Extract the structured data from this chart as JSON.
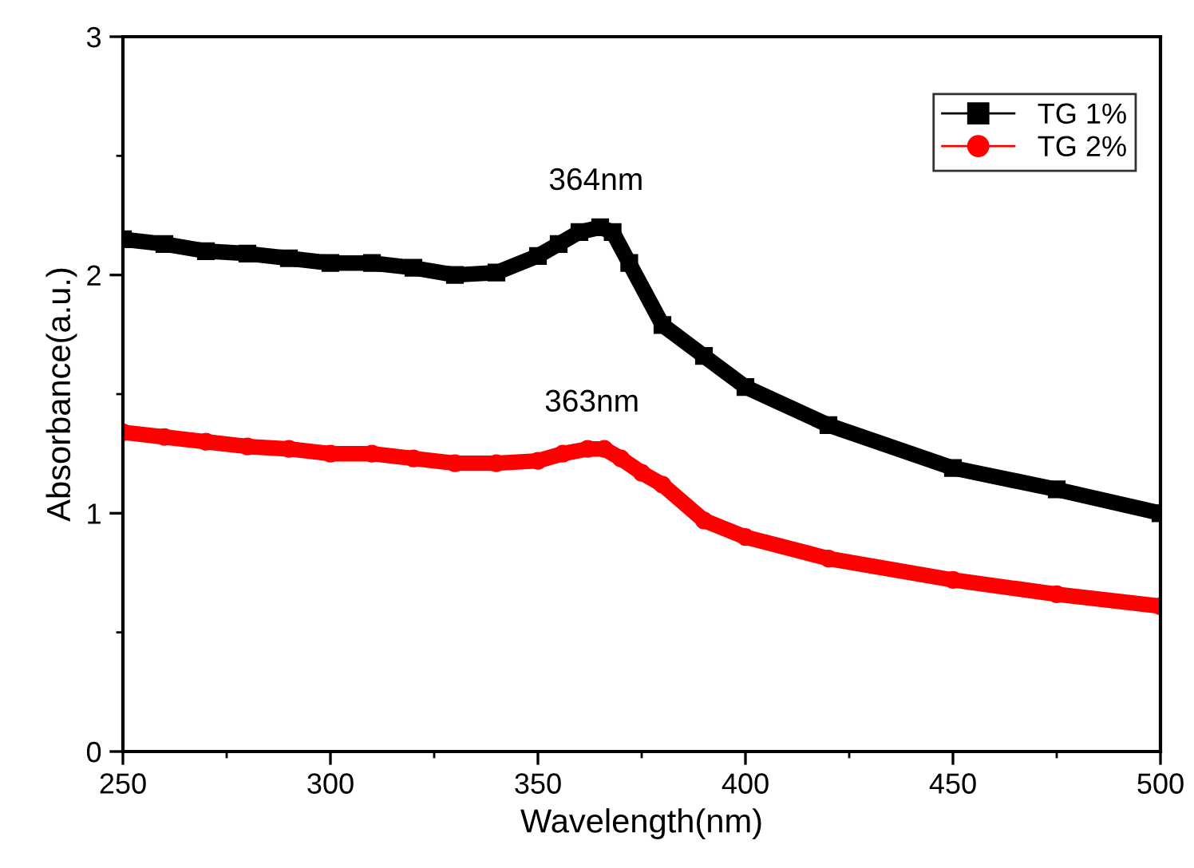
{
  "chart_data": {
    "type": "line",
    "xlabel": "Wavelength(nm)",
    "ylabel": "Absorbance(a.u.)",
    "xlim": [
      250,
      500
    ],
    "xticks": [
      250,
      300,
      350,
      400,
      450,
      500
    ],
    "ylim": [
      0,
      3
    ],
    "yticks": [
      0,
      1,
      2,
      3
    ],
    "grid": false,
    "legend": "top right",
    "line_style": "solid",
    "series": [
      {
        "name": "TG 1%",
        "color": "#000000",
        "marker": "square",
        "x": [
          250,
          260,
          270,
          280,
          290,
          300,
          310,
          320,
          330,
          340,
          350,
          355,
          360,
          365,
          368,
          372,
          380,
          390,
          400,
          420,
          450,
          475,
          500
        ],
        "values": [
          2.15,
          2.13,
          2.1,
          2.09,
          2.07,
          2.05,
          2.05,
          2.03,
          2.0,
          2.01,
          2.08,
          2.13,
          2.18,
          2.2,
          2.18,
          2.05,
          1.79,
          1.66,
          1.53,
          1.37,
          1.19,
          1.1,
          1.0
        ]
      },
      {
        "name": "TG 2%",
        "color": "#ff0000",
        "marker": "circle",
        "x": [
          250,
          260,
          270,
          280,
          290,
          300,
          310,
          320,
          330,
          340,
          350,
          356,
          362,
          366,
          370,
          375,
          380,
          390,
          400,
          420,
          450,
          475,
          500
        ],
        "values": [
          1.34,
          1.32,
          1.3,
          1.28,
          1.27,
          1.25,
          1.25,
          1.23,
          1.21,
          1.21,
          1.22,
          1.25,
          1.27,
          1.27,
          1.23,
          1.17,
          1.12,
          0.97,
          0.9,
          0.81,
          0.72,
          0.66,
          0.61
        ]
      }
    ],
    "annotations": [
      {
        "text": "364nm",
        "x": 364,
        "y": 2.2
      },
      {
        "text": "363nm",
        "x": 363,
        "y": 1.27
      }
    ]
  }
}
